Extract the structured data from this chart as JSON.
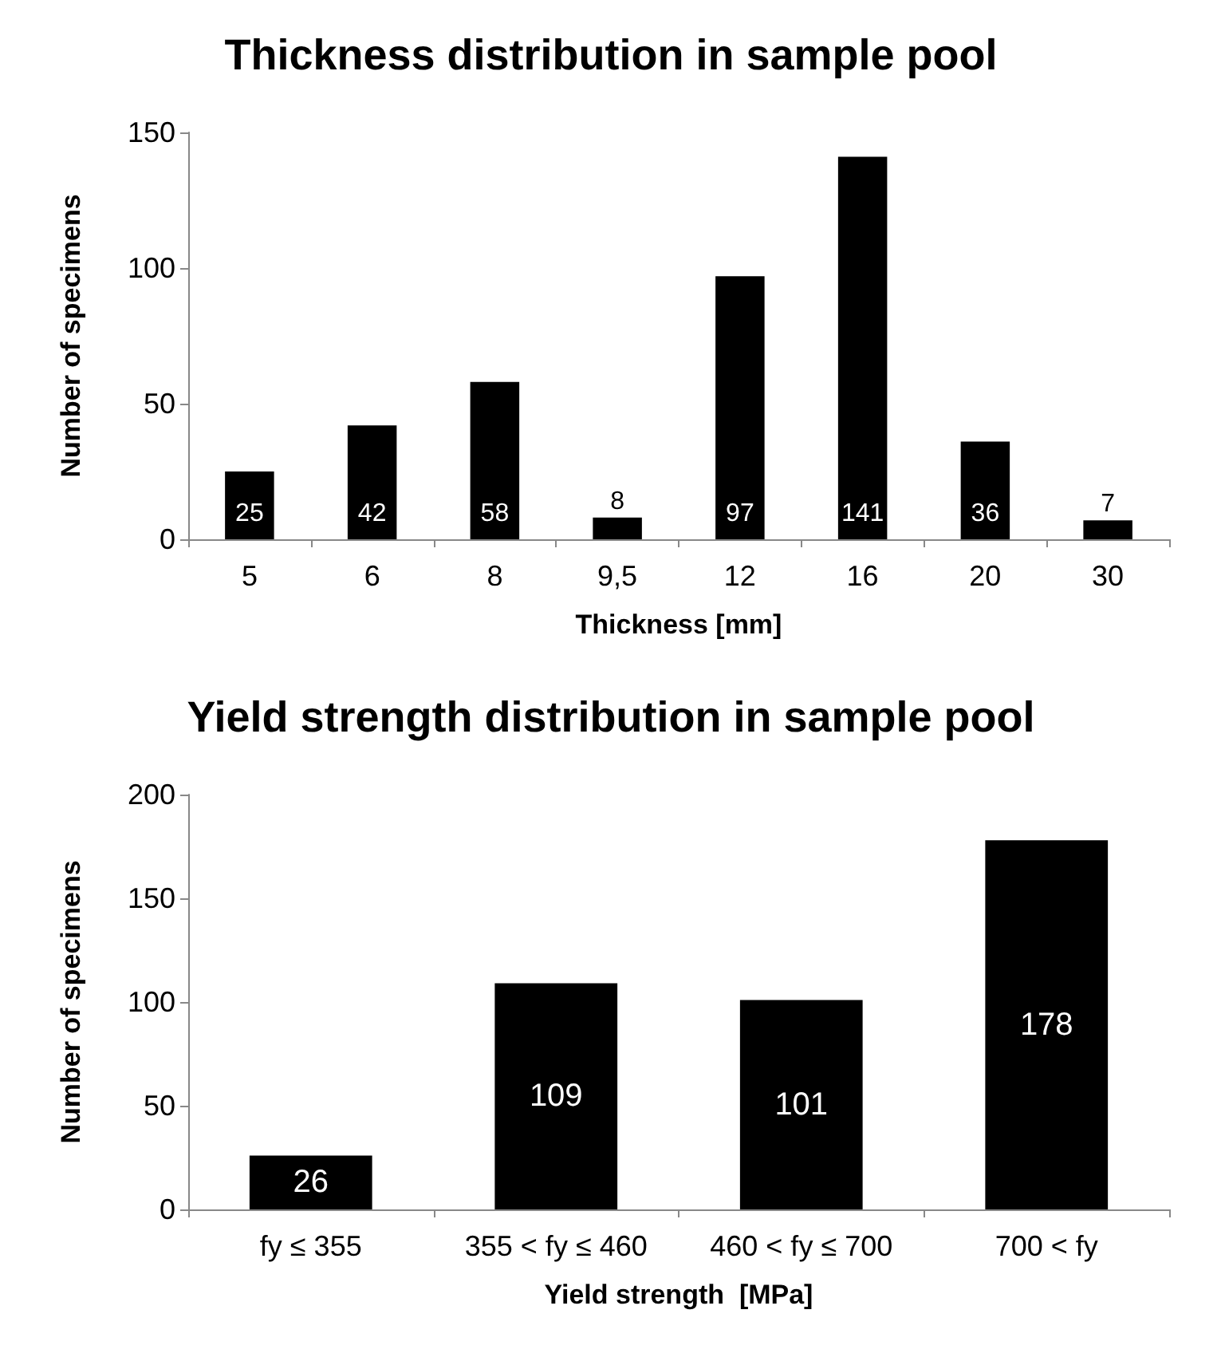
{
  "chart_data": [
    {
      "type": "bar",
      "title": "Thickness distribution in sample pool",
      "xlabel": "Thickness [mm]",
      "ylabel": "Number of specimens",
      "categories": [
        "5",
        "6",
        "8",
        "9,5",
        "12",
        "16",
        "20",
        "30"
      ],
      "values": [
        25,
        42,
        58,
        8,
        97,
        141,
        36,
        7
      ],
      "color": "#000000",
      "ylim": [
        0,
        150
      ],
      "yticks": [
        0,
        50,
        100,
        150
      ],
      "grid": false,
      "data_labels": true
    },
    {
      "type": "bar",
      "title": "Yield strength distribution in sample pool",
      "xlabel": "Yield strength  [MPa]",
      "ylabel": "Number of specimens",
      "categories": [
        "fy ≤ 355",
        "355 < fy ≤ 460",
        "460 < fy ≤ 700",
        "700 < fy"
      ],
      "values": [
        26,
        109,
        101,
        178
      ],
      "color": "#000000",
      "ylim": [
        0,
        200
      ],
      "yticks": [
        0,
        50,
        100,
        150,
        200
      ],
      "grid": false,
      "data_labels": true
    }
  ]
}
